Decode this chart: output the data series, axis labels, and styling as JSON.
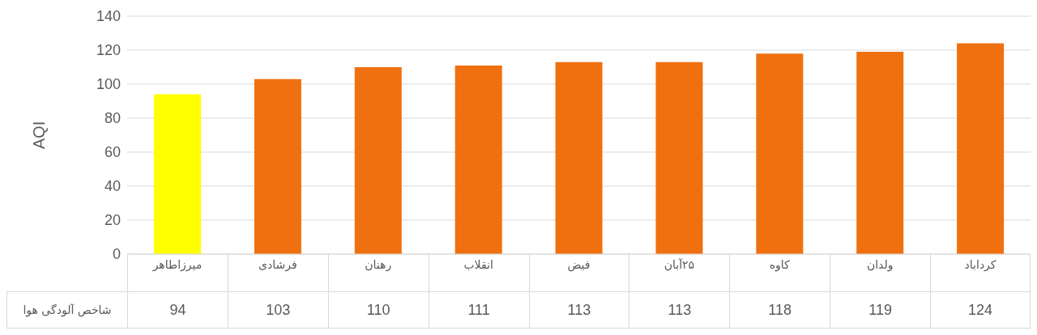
{
  "chart_data": {
    "type": "bar",
    "ylabel": "AQI",
    "categories": [
      "میرزاطاهر",
      "فرشادی",
      "رهنان",
      "انقلاب",
      "فیض",
      "۲۵آبان",
      "کاوه",
      "ولدان",
      "کرداباد"
    ],
    "series": [
      {
        "name": "شاخص آلودگی هوا",
        "colors": [
          "#ffff00",
          "#f07010",
          "#f07010",
          "#f07010",
          "#f07010",
          "#f07010",
          "#f07010",
          "#f07010",
          "#f07010"
        ],
        "values": [
          94,
          103,
          110,
          111,
          113,
          113,
          118,
          119,
          124
        ]
      }
    ],
    "ylim": [
      0,
      140
    ],
    "yticks": [
      0,
      20,
      40,
      60,
      80,
      100,
      120,
      140
    ],
    "grid": "y",
    "data_labels": true
  }
}
